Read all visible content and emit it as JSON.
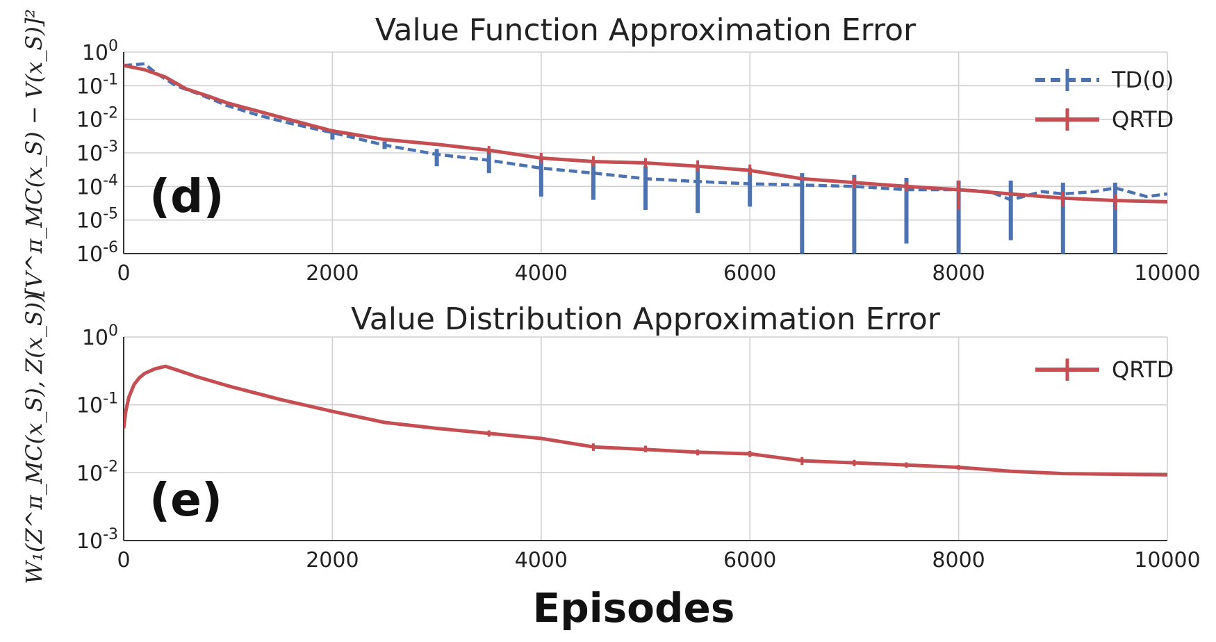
{
  "colors": {
    "td0": "#4c72b0",
    "qrtd": "#c44e52",
    "grid": "#d0d0d0",
    "axis": "#333333"
  },
  "xlabel": "Episodes",
  "chart_data": [
    {
      "type": "line",
      "title": "Value Function Approximation Error",
      "panel_tag": "(d)",
      "ylabel": "[V^π_MC(x_S) − V(x_S)]²",
      "xlim": [
        0,
        10000
      ],
      "ylim": [
        1e-06,
        1
      ],
      "yscale": "log",
      "grid": true,
      "legend": "top-right",
      "x_ticks": [
        "0",
        "2000",
        "4000",
        "6000",
        "8000",
        "10000"
      ],
      "y_ticks": [
        "10^0",
        "10^-1",
        "10^-2",
        "10^-3",
        "10^-4",
        "10^-5",
        "10^-6"
      ],
      "series": [
        {
          "name": "TD(0)",
          "style": "dashed",
          "color": "#4c72b0",
          "x": [
            0,
            100,
            200,
            300,
            500,
            700,
            1000,
            1300,
            1600,
            2000,
            2500,
            3000,
            3500,
            4000,
            4500,
            5000,
            5500,
            6000,
            6500,
            7000,
            7500,
            8000,
            8300,
            8500,
            8800,
            9000,
            9300,
            9500,
            9800,
            10000
          ],
          "y": [
            0.4,
            0.42,
            0.45,
            0.25,
            0.1,
            0.06,
            0.025,
            0.013,
            0.0075,
            0.004,
            0.0017,
            0.0009,
            0.0006,
            0.00035,
            0.00025,
            0.00017,
            0.00014,
            0.00012,
            0.00011,
            0.0001,
            8e-05,
            8e-05,
            7e-05,
            4e-05,
            7e-05,
            6e-05,
            7e-05,
            9e-05,
            5e-05,
            6e-05
          ],
          "error_bars": [
            {
              "x": 2000,
              "low": 0.0025,
              "high": 0.005
            },
            {
              "x": 2500,
              "low": 0.0013,
              "high": 0.0022
            },
            {
              "x": 3000,
              "low": 0.0004,
              "high": 0.0013
            },
            {
              "x": 3500,
              "low": 0.00025,
              "high": 0.0012
            },
            {
              "x": 4000,
              "low": 5e-05,
              "high": 0.0008
            },
            {
              "x": 4500,
              "low": 4e-05,
              "high": 0.0006
            },
            {
              "x": 5000,
              "low": 2e-05,
              "high": 0.0004
            },
            {
              "x": 5500,
              "low": 1.6e-05,
              "high": 0.0004
            },
            {
              "x": 6000,
              "low": 2.5e-05,
              "high": 0.00035
            },
            {
              "x": 6500,
              "low": 1e-06,
              "high": 0.00025
            },
            {
              "x": 7000,
              "low": 1e-06,
              "high": 0.00022
            },
            {
              "x": 7500,
              "low": 2e-06,
              "high": 0.00018
            },
            {
              "x": 8000,
              "low": 1e-06,
              "high": 0.00015
            },
            {
              "x": 8500,
              "low": 2.5e-06,
              "high": 0.00015
            },
            {
              "x": 9000,
              "low": 1e-06,
              "high": 0.00013
            },
            {
              "x": 9500,
              "low": 1e-06,
              "high": 0.00013
            }
          ]
        },
        {
          "name": "QRTD",
          "style": "solid",
          "color": "#c44e52",
          "x": [
            0,
            200,
            400,
            600,
            800,
            1000,
            1300,
            1600,
            2000,
            2500,
            3000,
            3500,
            4000,
            4500,
            5000,
            5500,
            6000,
            6500,
            7000,
            7500,
            8000,
            8500,
            9000,
            9500,
            10000
          ],
          "y": [
            0.4,
            0.3,
            0.18,
            0.08,
            0.05,
            0.03,
            0.017,
            0.0095,
            0.0045,
            0.0025,
            0.0018,
            0.0012,
            0.0007,
            0.00055,
            0.0005,
            0.0004,
            0.0003,
            0.00017,
            0.00013,
            0.0001,
            8e-05,
            6e-05,
            4.5e-05,
            3.8e-05,
            3.5e-05
          ],
          "error_bars": [
            {
              "x": 3500,
              "low": 0.0009,
              "high": 0.0016
            },
            {
              "x": 4000,
              "low": 0.0005,
              "high": 0.001
            },
            {
              "x": 4500,
              "low": 0.0004,
              "high": 0.0008
            },
            {
              "x": 5000,
              "low": 0.00035,
              "high": 0.0007
            },
            {
              "x": 5500,
              "low": 0.00028,
              "high": 0.0006
            },
            {
              "x": 6000,
              "low": 0.00022,
              "high": 0.00045
            },
            {
              "x": 7000,
              "low": 9e-05,
              "high": 0.00018
            },
            {
              "x": 7500,
              "low": 7e-05,
              "high": 0.00014
            },
            {
              "x": 8000,
              "low": 2e-05,
              "high": 0.00015
            },
            {
              "x": 9000,
              "low": 2.5e-05,
              "high": 7e-05
            },
            {
              "x": 9500,
              "low": 2e-05,
              "high": 6e-05
            }
          ]
        }
      ]
    },
    {
      "type": "line",
      "title": "Value Distribution Approximation Error",
      "panel_tag": "(e)",
      "ylabel": "W₁(Z^π_MC(x_S), Z(x_S))",
      "xlim": [
        0,
        10000
      ],
      "ylim": [
        0.001,
        1
      ],
      "yscale": "log",
      "grid": true,
      "legend": "top-right",
      "x_ticks": [
        "0",
        "2000",
        "4000",
        "6000",
        "8000",
        "10000"
      ],
      "y_ticks": [
        "10^0",
        "10^-1",
        "10^-2",
        "10^-3"
      ],
      "series": [
        {
          "name": "QRTD",
          "style": "solid",
          "color": "#c44e52",
          "x": [
            0,
            20,
            50,
            100,
            150,
            200,
            300,
            400,
            500,
            700,
            1000,
            1500,
            2000,
            2500,
            3000,
            3500,
            4000,
            4500,
            5000,
            5500,
            6000,
            6500,
            7000,
            7500,
            8000,
            8500,
            9000,
            9500,
            10000
          ],
          "y": [
            0.045,
            0.08,
            0.13,
            0.2,
            0.25,
            0.29,
            0.34,
            0.37,
            0.33,
            0.26,
            0.19,
            0.12,
            0.08,
            0.055,
            0.045,
            0.038,
            0.032,
            0.024,
            0.022,
            0.02,
            0.019,
            0.015,
            0.014,
            0.013,
            0.012,
            0.0105,
            0.0097,
            0.0095,
            0.0093
          ],
          "error_bars": [
            {
              "x": 3500,
              "low": 0.034,
              "high": 0.042
            },
            {
              "x": 4500,
              "low": 0.021,
              "high": 0.027
            },
            {
              "x": 5000,
              "low": 0.02,
              "high": 0.025
            },
            {
              "x": 5500,
              "low": 0.018,
              "high": 0.022
            },
            {
              "x": 6000,
              "low": 0.017,
              "high": 0.021
            },
            {
              "x": 6500,
              "low": 0.013,
              "high": 0.017
            },
            {
              "x": 7000,
              "low": 0.0125,
              "high": 0.0155
            },
            {
              "x": 7500,
              "low": 0.0118,
              "high": 0.0142
            },
            {
              "x": 8000,
              "low": 0.011,
              "high": 0.013
            }
          ]
        }
      ]
    }
  ]
}
